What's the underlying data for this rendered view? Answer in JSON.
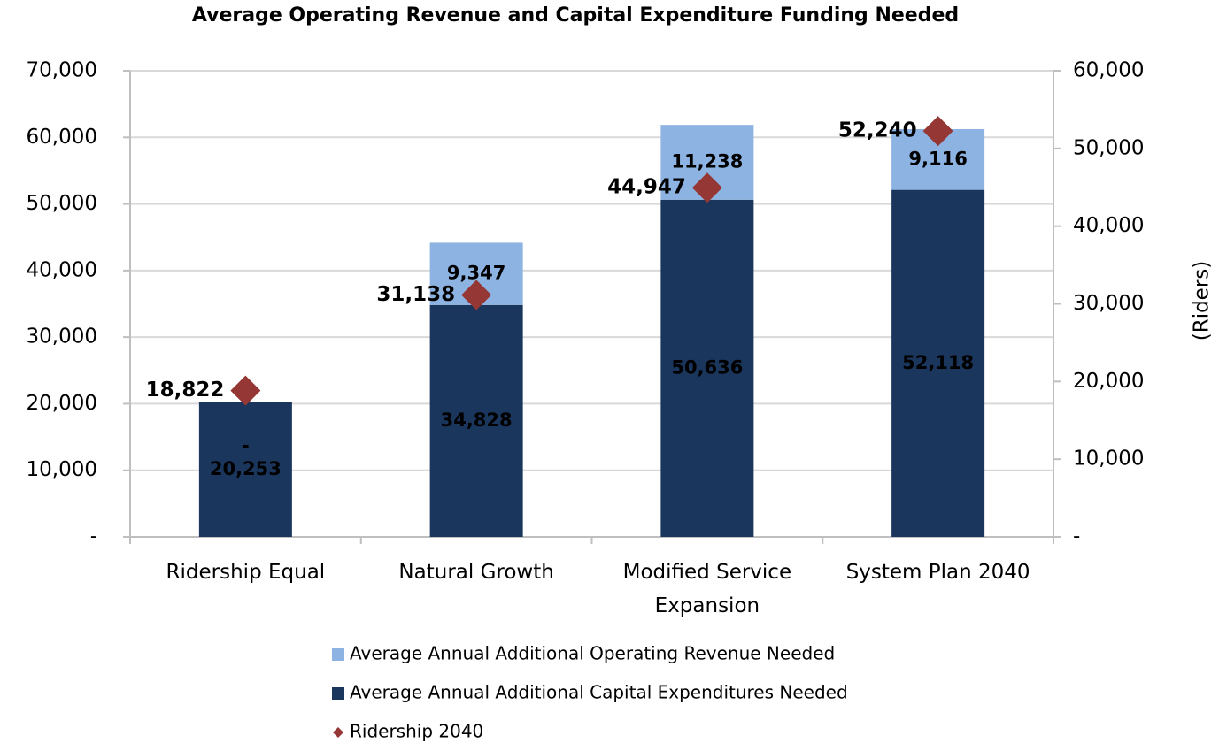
{
  "chart_data": {
    "type": "bar",
    "stacked": true,
    "title": "Average Operating Revenue and Capital Expenditure Funding Needed",
    "y2label": "(Riders)",
    "categories": [
      "Ridership Equal",
      "Natural Growth",
      "Modified Service Expansion",
      "System Plan 2040"
    ],
    "series": [
      {
        "name": "Average Annual Additional Operating Revenue Needed",
        "color": "#8db3e2",
        "values": [
          0,
          9347,
          11238,
          9116
        ],
        "value_labels": [
          "-",
          "9,347",
          "11,238",
          "9,116"
        ]
      },
      {
        "name": "Average Annual Additional Capital Expenditures Needed",
        "color": "#1b365d",
        "values": [
          20253,
          34828,
          50636,
          52118
        ],
        "value_labels": [
          "20,253",
          "34,828",
          "50,636",
          "52,118"
        ]
      },
      {
        "name": "Ridership 2040",
        "color": "#953735",
        "type": "scatter",
        "axis": "y2",
        "values": [
          18822,
          31138,
          44947,
          52240
        ],
        "value_labels": [
          "18,822",
          "31,138",
          "44,947",
          "52,240"
        ]
      }
    ],
    "ylim": [
      0,
      70000
    ],
    "yticks": [
      {
        "value": 0,
        "label": "-"
      },
      {
        "value": 10000,
        "label": "10,000"
      },
      {
        "value": 20000,
        "label": "20,000"
      },
      {
        "value": 30000,
        "label": "30,000"
      },
      {
        "value": 40000,
        "label": "40,000"
      },
      {
        "value": 50000,
        "label": "50,000"
      },
      {
        "value": 60000,
        "label": "60,000"
      },
      {
        "value": 70000,
        "label": "70,000"
      }
    ],
    "y2lim": [
      0,
      60000
    ],
    "y2ticks": [
      {
        "value": 0,
        "label": "-"
      },
      {
        "value": 10000,
        "label": "10,000"
      },
      {
        "value": 20000,
        "label": "20,000"
      },
      {
        "value": 30000,
        "label": "30,000"
      },
      {
        "value": 40000,
        "label": "40,000"
      },
      {
        "value": 50000,
        "label": "50,000"
      },
      {
        "value": 60000,
        "label": "60,000"
      }
    ],
    "grid": true,
    "legend": "bottom"
  }
}
